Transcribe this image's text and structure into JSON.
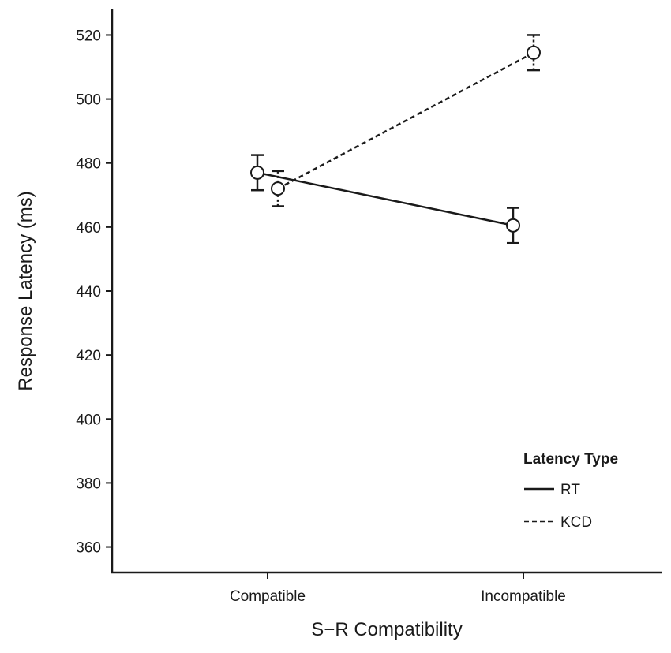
{
  "chart_data": {
    "type": "line",
    "title": "",
    "xlabel": "S−R Compatibility",
    "ylabel": "Response Latency (ms)",
    "categories": [
      "Compatible",
      "Incompatible"
    ],
    "ylim": [
      352,
      528
    ],
    "yticks": [
      360,
      380,
      400,
      420,
      440,
      460,
      480,
      500,
      520
    ],
    "grid": false,
    "legend": {
      "title": "Latency Type",
      "position": "bottom-right"
    },
    "series": [
      {
        "name": "RT",
        "line_style": "solid",
        "values": [
          477,
          460.5
        ],
        "error": [
          5.5,
          5.5
        ]
      },
      {
        "name": "KCD",
        "line_style": "dashed",
        "values": [
          472,
          514.5
        ],
        "error": [
          5.5,
          5.5
        ]
      }
    ]
  }
}
